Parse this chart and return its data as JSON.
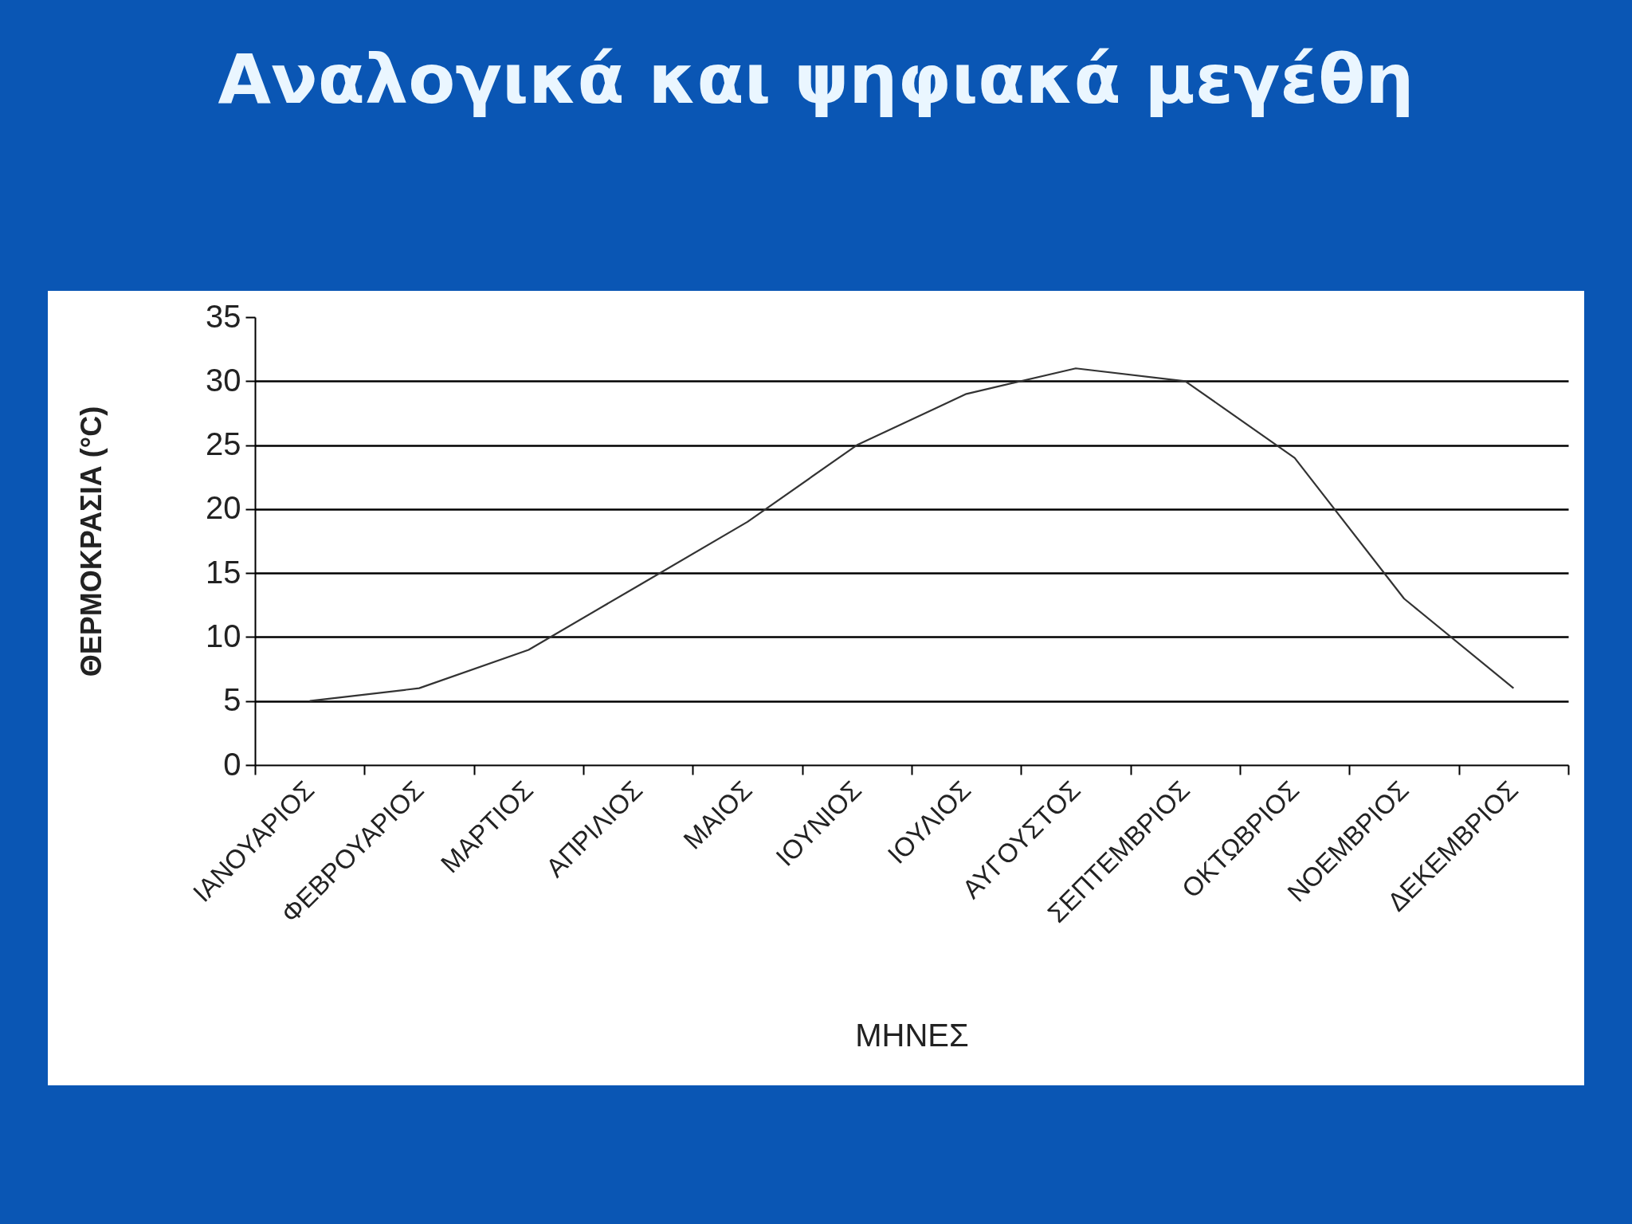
{
  "chart_data": {
    "type": "line",
    "title": "Αναλογικά και ψηφιακά μεγέθη",
    "xlabel": "ΜΗΝΕΣ",
    "ylabel": "ΘΕΡΜΟΚΡΑΣΙΑ (°C)",
    "categories": [
      "ΙΑΝΟΥΑΡΙΟΣ",
      "ΦΕΒΡΟΥΑΡΙΟΣ",
      "ΜΑΡΤΙΟΣ",
      "ΑΠΡΙΛΙΟΣ",
      "ΜΑΙΟΣ",
      "ΙΟΥΝΙΟΣ",
      "ΙΟΥΛΙΟΣ",
      "ΑΥΓΟΥΣΤΟΣ",
      "ΣΕΠΤΕΜΒΡΙΟΣ",
      "ΟΚΤΩΒΡΙΟΣ",
      "ΝΟΕΜΒΡΙΟΣ",
      "ΔΕΚΕΜΒΡΙΟΣ"
    ],
    "series": [
      {
        "color": "#333333",
        "values": [
          5,
          6,
          9,
          14,
          19,
          25,
          29,
          31,
          30,
          24,
          13,
          6
        ]
      }
    ],
    "ylim": [
      0,
      35
    ],
    "yticks": [
      0,
      5,
      10,
      15,
      20,
      25,
      30,
      35
    ],
    "grid": "y"
  }
}
